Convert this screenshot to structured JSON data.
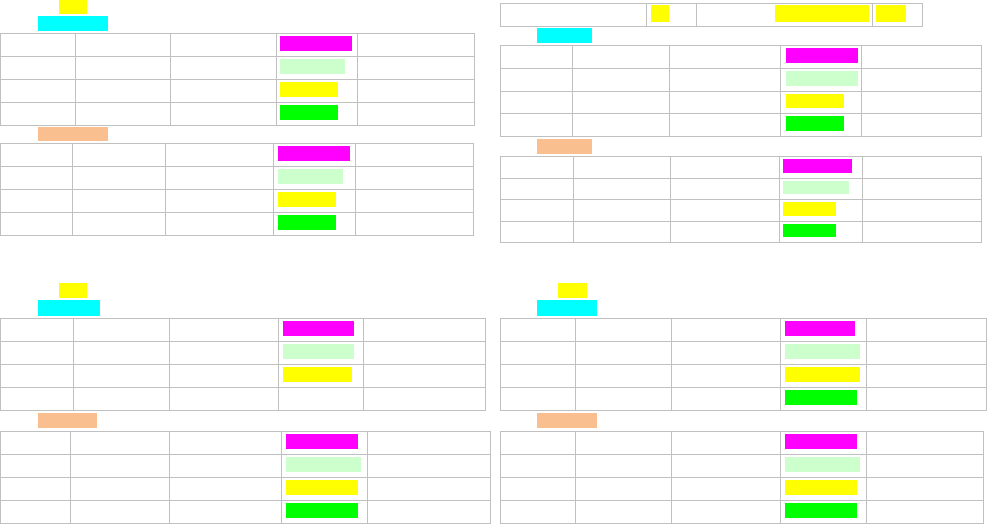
{
  "colors": {
    "yellow": "#ffff00",
    "cyan": "#00ffff",
    "orange": "#fabf8f",
    "magenta": "#ff00ff",
    "light_green": "#ccffcc",
    "green": "#00ff00",
    "grid": "#c0c0c0"
  },
  "panels": [
    {
      "title_block": "yellow",
      "header_block": "cyan",
      "section2_block": "orange",
      "table1_bars": [
        "magenta",
        "light_green",
        "yellow",
        "green"
      ],
      "table2_bars": [
        "magenta",
        "light_green",
        "yellow",
        "green"
      ]
    },
    {
      "top_row_blocks": [
        "yellow",
        "yellow",
        "yellow"
      ],
      "header_block": "cyan",
      "section2_block": "orange",
      "table1_bars": [
        "magenta",
        "light_green",
        "yellow",
        "green"
      ],
      "table2_bars": [
        "magenta",
        "light_green",
        "yellow",
        "green"
      ]
    },
    {
      "title_block": "yellow",
      "header_block": "cyan",
      "section2_block": "orange",
      "table1_bars": [
        "magenta",
        "light_green",
        "yellow",
        null
      ],
      "table2_bars": [
        "magenta",
        "light_green",
        "yellow",
        "green"
      ]
    },
    {
      "title_block": "yellow",
      "header_block": "cyan",
      "section2_block": "orange",
      "table1_bars": [
        "magenta",
        "light_green",
        "yellow",
        "green"
      ],
      "table2_bars": [
        "magenta",
        "light_green",
        "yellow",
        "green"
      ]
    }
  ]
}
